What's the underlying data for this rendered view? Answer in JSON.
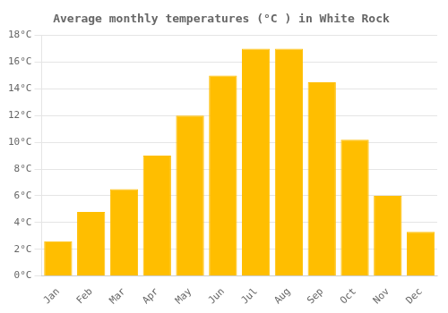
{
  "chart_data": {
    "type": "bar",
    "title": "Average monthly temperatures (°C ) in White Rock",
    "categories": [
      "Jan",
      "Feb",
      "Mar",
      "Apr",
      "May",
      "Jun",
      "Jul",
      "Aug",
      "Sep",
      "Oct",
      "Nov",
      "Dec"
    ],
    "values": [
      2.6,
      4.8,
      6.5,
      9.0,
      12.0,
      15.0,
      17.0,
      17.0,
      14.5,
      10.2,
      6.0,
      3.3
    ],
    "color": "#FFBE00",
    "ylim": [
      0,
      18
    ],
    "yticks": [
      {
        "value": 0,
        "label": "0°C"
      },
      {
        "value": 2,
        "label": "2°C"
      },
      {
        "value": 4,
        "label": "4°C"
      },
      {
        "value": 6,
        "label": "6°C"
      },
      {
        "value": 8,
        "label": "8°C"
      },
      {
        "value": 10,
        "label": "10°C"
      },
      {
        "value": 12,
        "label": "12°C"
      },
      {
        "value": 14,
        "label": "14°C"
      },
      {
        "value": 16,
        "label": "16°C"
      },
      {
        "value": 18,
        "label": "18°C"
      }
    ],
    "grid": true
  }
}
